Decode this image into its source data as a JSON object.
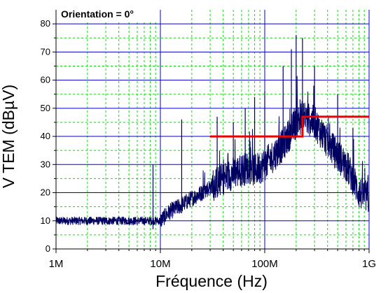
{
  "chart_data": {
    "type": "line",
    "title": "Orientation = 0°",
    "xlabel": "Fréquence (Hz)",
    "ylabel": "V TEM (dBµV)",
    "x_scale": "log",
    "xlim": [
      1000000,
      1000000000
    ],
    "ylim": [
      0,
      85
    ],
    "x_ticks": [
      {
        "value": 1000000,
        "label": "1M"
      },
      {
        "value": 10000000,
        "label": "10M"
      },
      {
        "value": 100000000,
        "label": "100M"
      },
      {
        "value": 1000000000,
        "label": "1G"
      }
    ],
    "y_ticks": [
      0,
      10,
      20,
      30,
      40,
      50,
      60,
      70,
      80
    ],
    "grid": {
      "major": "solid blue",
      "minor": "dashed green"
    },
    "series": [
      {
        "role": "measured emission",
        "color": "#000060",
        "x": [
          1000000,
          1500000,
          2000000,
          3000000,
          5000000,
          7000000,
          9000000,
          10000000,
          12000000,
          15000000,
          20000000,
          25000000,
          30000000,
          40000000,
          50000000,
          60000000,
          70000000,
          80000000,
          100000000,
          120000000,
          150000000,
          180000000,
          200000000,
          230000000,
          300000000,
          400000000,
          500000000,
          600000000,
          700000000,
          800000000,
          1000000000
        ],
        "y": [
          10,
          10,
          10,
          10,
          10,
          10,
          10,
          10,
          13,
          15,
          18,
          20,
          22,
          25,
          27,
          28,
          29,
          28,
          30,
          33,
          37,
          42,
          45,
          47,
          45,
          38,
          33,
          30,
          25,
          20,
          18
        ],
        "peaks": [
          {
            "x": 16000000,
            "y": 46
          },
          {
            "x": 8500000,
            "y": 30
          },
          {
            "x": 35000000,
            "y": 47
          },
          {
            "x": 50000000,
            "y": 45
          },
          {
            "x": 65000000,
            "y": 50
          },
          {
            "x": 80000000,
            "y": 54
          },
          {
            "x": 100000000,
            "y": 56
          },
          {
            "x": 150000000,
            "y": 65
          },
          {
            "x": 180000000,
            "y": 71
          },
          {
            "x": 200000000,
            "y": 76
          },
          {
            "x": 230000000,
            "y": 75
          },
          {
            "x": 300000000,
            "y": 65
          },
          {
            "x": 500000000,
            "y": 55
          },
          {
            "x": 700000000,
            "y": 43
          }
        ]
      },
      {
        "role": "limit",
        "color": "#ee0000",
        "x": [
          30000000,
          230000000,
          230000000,
          1000000000
        ],
        "y": [
          40,
          40,
          47,
          47
        ]
      }
    ]
  }
}
